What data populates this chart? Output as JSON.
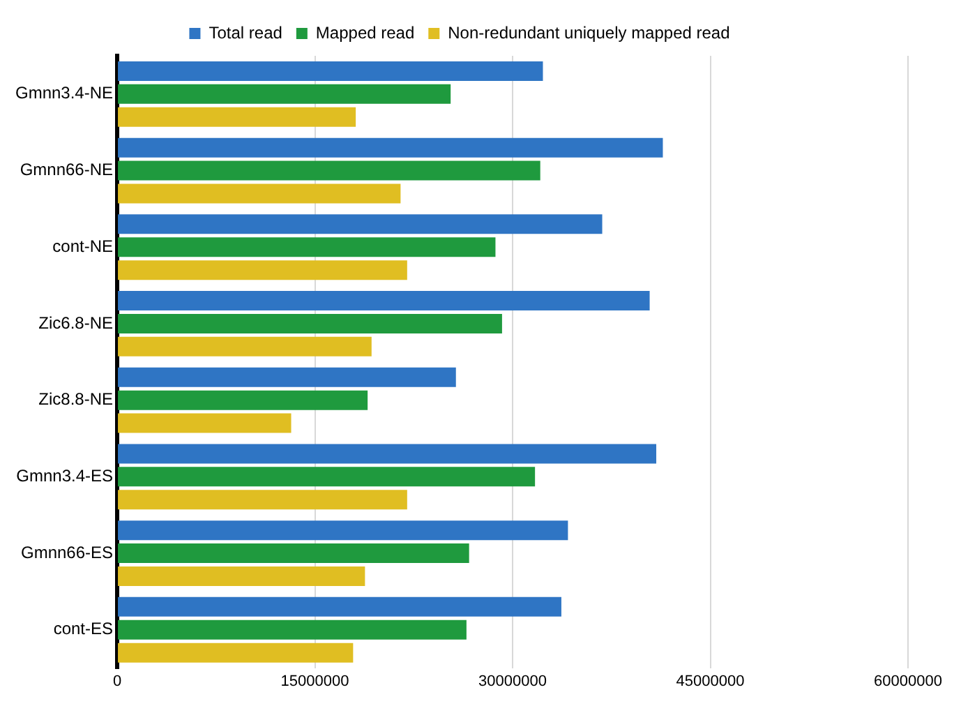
{
  "chart_data": {
    "type": "bar",
    "orientation": "horizontal",
    "categories": [
      "Gmnn3.4-NE",
      "Gmnn66-NE",
      "cont-NE",
      "Zic6.8-NE",
      "Zic8.8-NE",
      "Gmnn3.4-ES",
      "Gmnn66-ES",
      "cont-ES"
    ],
    "series": [
      {
        "name": "Total read",
        "color": "#2f75c4",
        "values": [
          32300000,
          41400000,
          36800000,
          40400000,
          25700000,
          40900000,
          34200000,
          33700000
        ]
      },
      {
        "name": "Mapped read",
        "color": "#1f9a3e",
        "values": [
          25300000,
          32100000,
          28700000,
          29200000,
          19000000,
          31700000,
          26700000,
          26500000
        ]
      },
      {
        "name": "Non-redundant uniquely mapped read",
        "color": "#e0be22",
        "values": [
          18100000,
          21500000,
          22000000,
          19300000,
          13200000,
          22000000,
          18800000,
          17900000
        ]
      }
    ],
    "xlim": [
      0,
      60000000
    ],
    "xticks": [
      0,
      15000000,
      30000000,
      45000000,
      60000000
    ],
    "grid": "x",
    "legend": "top"
  }
}
